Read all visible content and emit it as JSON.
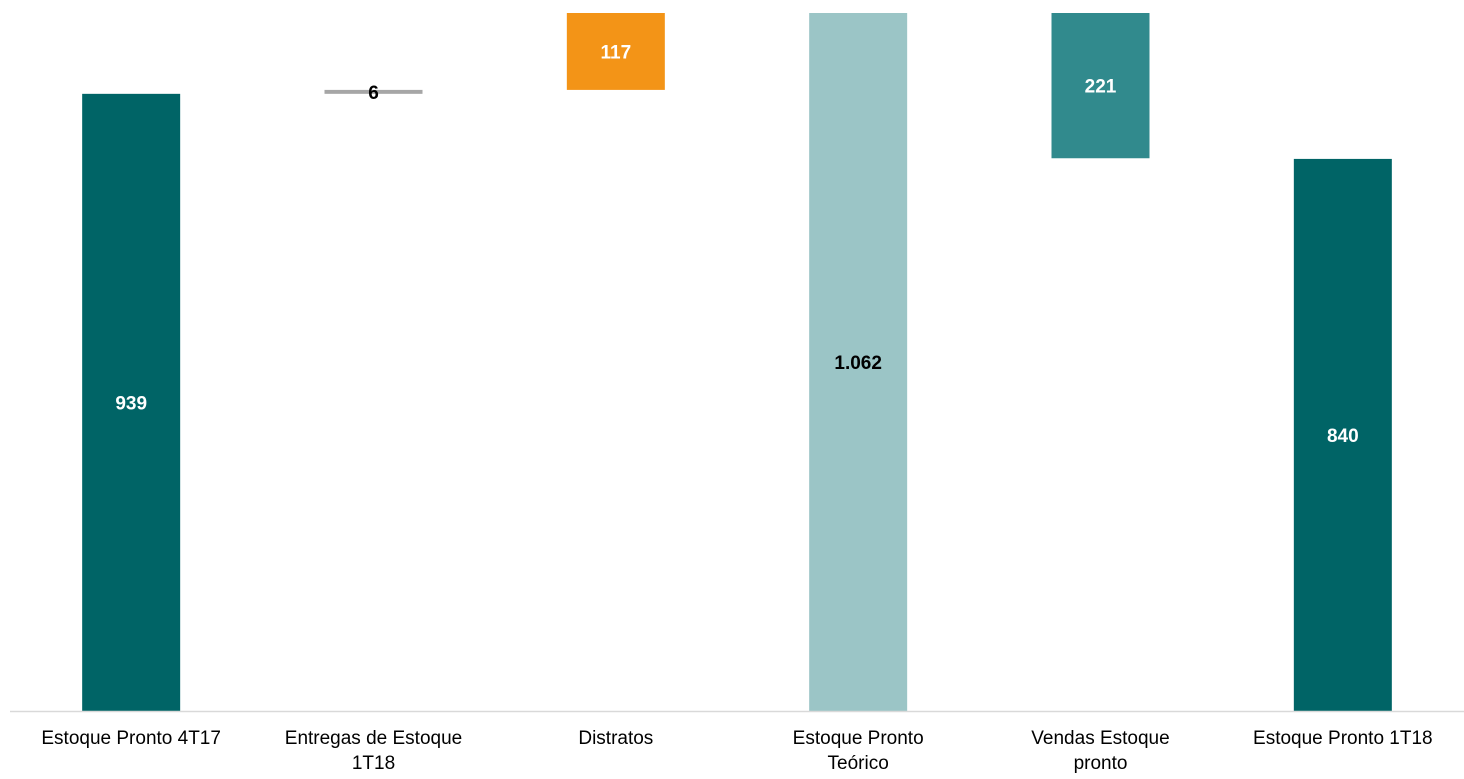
{
  "chart_data": {
    "type": "bar",
    "subtype": "waterfall",
    "categories": [
      [
        "Estoque Pronto 4T17"
      ],
      [
        "Entregas de Estoque",
        "1T18"
      ],
      [
        "Distratos"
      ],
      [
        "Estoque Pronto",
        "Teórico"
      ],
      [
        "Vendas Estoque",
        "pronto"
      ],
      [
        "Estoque Pronto 1T18"
      ]
    ],
    "bars": [
      {
        "kind": "total",
        "start": 0,
        "end": 939,
        "label": "939"
      },
      {
        "kind": "increase",
        "start": 939,
        "end": 945,
        "label": "6"
      },
      {
        "kind": "increase",
        "start": 945,
        "end": 1062,
        "label": "117"
      },
      {
        "kind": "total",
        "start": 0,
        "end": 1062,
        "label": "1.062"
      },
      {
        "kind": "decrease",
        "start": 1062,
        "end": 841,
        "label": "221"
      },
      {
        "kind": "total",
        "start": 0,
        "end": 840,
        "label": "840"
      }
    ],
    "colors": {
      "total": "#006466",
      "delivery": "#a6a6a6",
      "distratos": "#f39417",
      "theoretical": "#9bc5c6",
      "sales": "#318a8d",
      "axis": "#d9d9d9",
      "label_light": "#ffffff",
      "label_dark": "#000000"
    },
    "ylim": [
      0,
      1062
    ],
    "title": "",
    "xlabel": "",
    "ylabel": "",
    "grid": false,
    "legend": "none"
  }
}
